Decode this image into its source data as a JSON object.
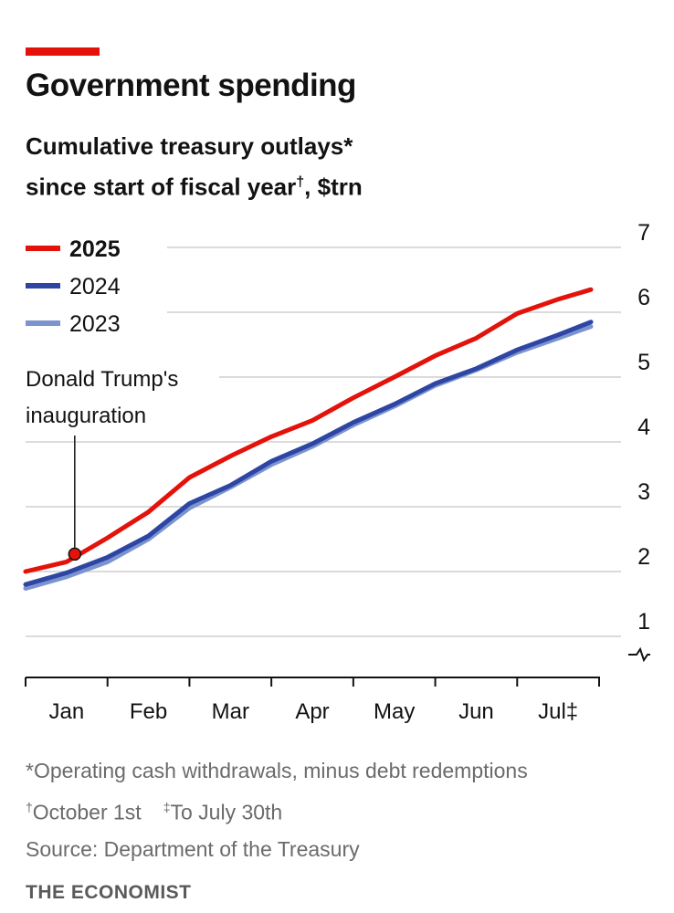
{
  "header": {
    "title": "Government spending",
    "subtitle_line1": "Cumulative treasury outlays*",
    "subtitle_line2": "since start of fiscal year",
    "subtitle_dagger": "†",
    "subtitle_unit": ", $trn"
  },
  "chart_data": {
    "type": "line",
    "title": "Government spending",
    "subtitle": "Cumulative treasury outlays* since start of fiscal year†, $trn",
    "ylabel": "$trn",
    "ylim": [
      0.8,
      7
    ],
    "yticks": [
      "1",
      "2",
      "3",
      "4",
      "5",
      "6",
      "7"
    ],
    "x_range": [
      0,
      7
    ],
    "x_tick_positions": [
      0,
      1,
      2,
      3,
      4,
      5,
      6,
      7
    ],
    "x_labels": [
      "Jan",
      "Feb",
      "Mar",
      "Apr",
      "May",
      "Jun",
      "Jul‡"
    ],
    "y_axis_break": true,
    "annotation": {
      "line1": "Donald Trump's",
      "line2": "inauguration",
      "x": 0.6,
      "y": 2.27,
      "series": "2025"
    },
    "series": [
      {
        "name": "2025",
        "color": "#e3120b",
        "x": [
          0,
          0.5,
          1,
          1.5,
          2,
          2.5,
          3,
          3.5,
          4,
          4.5,
          5,
          5.5,
          6,
          6.5,
          6.9
        ],
        "values": [
          2.0,
          2.15,
          2.52,
          2.92,
          3.45,
          3.78,
          4.08,
          4.33,
          4.68,
          5.0,
          5.33,
          5.6,
          5.98,
          6.2,
          6.35
        ]
      },
      {
        "name": "2024",
        "color": "#2e45a4",
        "x": [
          0,
          0.5,
          1,
          1.5,
          2,
          2.5,
          3,
          3.5,
          4,
          4.5,
          5,
          5.5,
          6,
          6.5,
          6.9
        ],
        "values": [
          1.8,
          1.98,
          2.22,
          2.55,
          3.05,
          3.33,
          3.7,
          3.97,
          4.3,
          4.58,
          4.9,
          5.13,
          5.42,
          5.65,
          5.85
        ]
      },
      {
        "name": "2023",
        "color": "#7b93cf",
        "x": [
          0,
          0.5,
          1,
          1.5,
          2,
          2.5,
          3,
          3.5,
          4,
          4.5,
          5,
          5.5,
          6,
          6.5,
          6.9
        ],
        "values": [
          1.74,
          1.92,
          2.15,
          2.5,
          2.98,
          3.3,
          3.65,
          3.93,
          4.26,
          4.55,
          4.87,
          5.11,
          5.38,
          5.6,
          5.78
        ]
      }
    ],
    "legend": [
      {
        "label": "2025",
        "color": "#e3120b",
        "bold": true
      },
      {
        "label": "2024",
        "color": "#2e45a4",
        "bold": false
      },
      {
        "label": "2023",
        "color": "#7b93cf",
        "bold": false
      }
    ]
  },
  "footnotes": {
    "note1": "*Operating cash withdrawals, minus debt redemptions",
    "note2_mark": "†",
    "note2": "October 1st",
    "note3_mark": "‡",
    "note3": "To July 30th",
    "source": "Source: Department of the Treasury"
  },
  "brand": "THE ECONOMIST"
}
